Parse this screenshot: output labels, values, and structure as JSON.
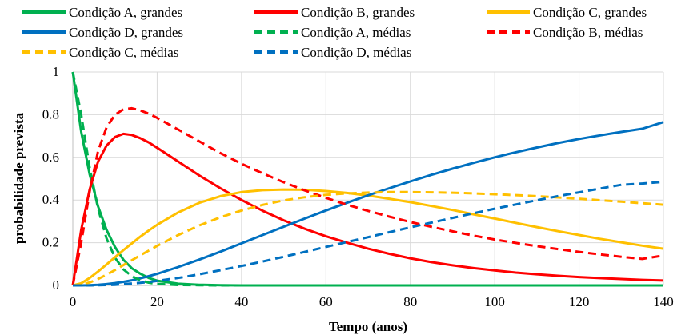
{
  "chart_data": {
    "type": "line",
    "title": "",
    "xlabel": "Tempo (anos)",
    "ylabel": "probabilidade prevista",
    "xlim": [
      0,
      140
    ],
    "ylim": [
      0,
      1
    ],
    "x_ticks": [
      0,
      20,
      40,
      60,
      80,
      100,
      120,
      140
    ],
    "y_ticks": [
      0,
      0.2,
      0.4,
      0.6,
      0.8,
      1
    ],
    "y_tick_labels": [
      "0",
      "0.2",
      "0.4",
      "0.6",
      "0.8",
      "1"
    ],
    "grid": true,
    "legend_position": "top",
    "x": [
      0,
      2,
      4,
      6,
      8,
      10,
      12,
      14,
      16,
      18,
      20,
      25,
      30,
      35,
      40,
      45,
      50,
      55,
      60,
      65,
      70,
      75,
      80,
      85,
      90,
      95,
      100,
      105,
      110,
      115,
      120,
      125,
      130,
      135,
      140
    ],
    "series": [
      {
        "name": "Condição A, grandes",
        "color": "#00b050",
        "dash": "solid",
        "values": [
          1,
          0.72,
          0.52,
          0.37,
          0.26,
          0.18,
          0.12,
          0.08,
          0.055,
          0.035,
          0.022,
          0.008,
          0.003,
          0.001,
          0,
          0,
          0,
          0,
          0,
          0,
          0,
          0,
          0,
          0,
          0,
          0,
          0,
          0,
          0,
          0,
          0,
          0,
          0,
          0,
          0
        ]
      },
      {
        "name": "Condição B, grandes",
        "color": "#ff0000",
        "dash": "solid",
        "values": [
          0,
          0.26,
          0.45,
          0.58,
          0.655,
          0.695,
          0.71,
          0.705,
          0.69,
          0.67,
          0.645,
          0.58,
          0.515,
          0.455,
          0.4,
          0.35,
          0.305,
          0.265,
          0.23,
          0.2,
          0.172,
          0.148,
          0.127,
          0.109,
          0.094,
          0.081,
          0.07,
          0.06,
          0.052,
          0.045,
          0.039,
          0.034,
          0.03,
          0.026,
          0.023
        ]
      },
      {
        "name": "Condição C, grandes",
        "color": "#ffc000",
        "dash": "solid",
        "values": [
          0,
          0.01,
          0.035,
          0.065,
          0.098,
          0.132,
          0.165,
          0.197,
          0.228,
          0.257,
          0.284,
          0.342,
          0.387,
          0.418,
          0.437,
          0.446,
          0.449,
          0.448,
          0.442,
          0.433,
          0.421,
          0.406,
          0.39,
          0.372,
          0.353,
          0.333,
          0.313,
          0.293,
          0.273,
          0.254,
          0.236,
          0.218,
          0.202,
          0.186,
          0.172
        ]
      },
      {
        "name": "Condição D, grandes",
        "color": "#0070c0",
        "dash": "solid",
        "values": [
          0,
          0,
          0.001,
          0.003,
          0.006,
          0.011,
          0.017,
          0.024,
          0.033,
          0.043,
          0.054,
          0.086,
          0.121,
          0.158,
          0.197,
          0.236,
          0.275,
          0.313,
          0.351,
          0.387,
          0.422,
          0.455,
          0.487,
          0.518,
          0.547,
          0.574,
          0.6,
          0.624,
          0.646,
          0.667,
          0.686,
          0.703,
          0.719,
          0.734,
          0.765
        ]
      },
      {
        "name": "Condição A, médias",
        "color": "#00b050",
        "dash": "dashed",
        "values": [
          1,
          0.8,
          0.55,
          0.36,
          0.22,
          0.13,
          0.075,
          0.043,
          0.024,
          0.013,
          0.007,
          0.002,
          0.001,
          0,
          0,
          0,
          0,
          0,
          0,
          0,
          0,
          0,
          0,
          0,
          0,
          0,
          0,
          0,
          0,
          0,
          0,
          0,
          0,
          0,
          0
        ]
      },
      {
        "name": "Condição B, médias",
        "color": "#ff0000",
        "dash": "dashed",
        "values": [
          0,
          0.2,
          0.44,
          0.63,
          0.74,
          0.8,
          0.825,
          0.83,
          0.82,
          0.805,
          0.785,
          0.73,
          0.675,
          0.62,
          0.57,
          0.525,
          0.483,
          0.445,
          0.41,
          0.378,
          0.349,
          0.322,
          0.297,
          0.274,
          0.253,
          0.233,
          0.215,
          0.199,
          0.184,
          0.17,
          0.157,
          0.145,
          0.134,
          0.124,
          0.14
        ]
      },
      {
        "name": "Condição C, médias",
        "color": "#ffc000",
        "dash": "dashed",
        "values": [
          0,
          0.004,
          0.014,
          0.03,
          0.05,
          0.072,
          0.095,
          0.118,
          0.141,
          0.163,
          0.185,
          0.236,
          0.281,
          0.319,
          0.351,
          0.377,
          0.398,
          0.413,
          0.424,
          0.431,
          0.435,
          0.437,
          0.437,
          0.436,
          0.434,
          0.431,
          0.427,
          0.423,
          0.418,
          0.412,
          0.406,
          0.399,
          0.392,
          0.385,
          0.378
        ]
      },
      {
        "name": "Condição D, médias",
        "color": "#0070c0",
        "dash": "dashed",
        "values": [
          0,
          0,
          0,
          0.001,
          0.002,
          0.003,
          0.006,
          0.009,
          0.012,
          0.016,
          0.021,
          0.035,
          0.052,
          0.071,
          0.091,
          0.112,
          0.134,
          0.157,
          0.18,
          0.203,
          0.226,
          0.249,
          0.272,
          0.294,
          0.316,
          0.338,
          0.359,
          0.379,
          0.399,
          0.418,
          0.436,
          0.454,
          0.471,
          0.477,
          0.485
        ]
      }
    ]
  }
}
